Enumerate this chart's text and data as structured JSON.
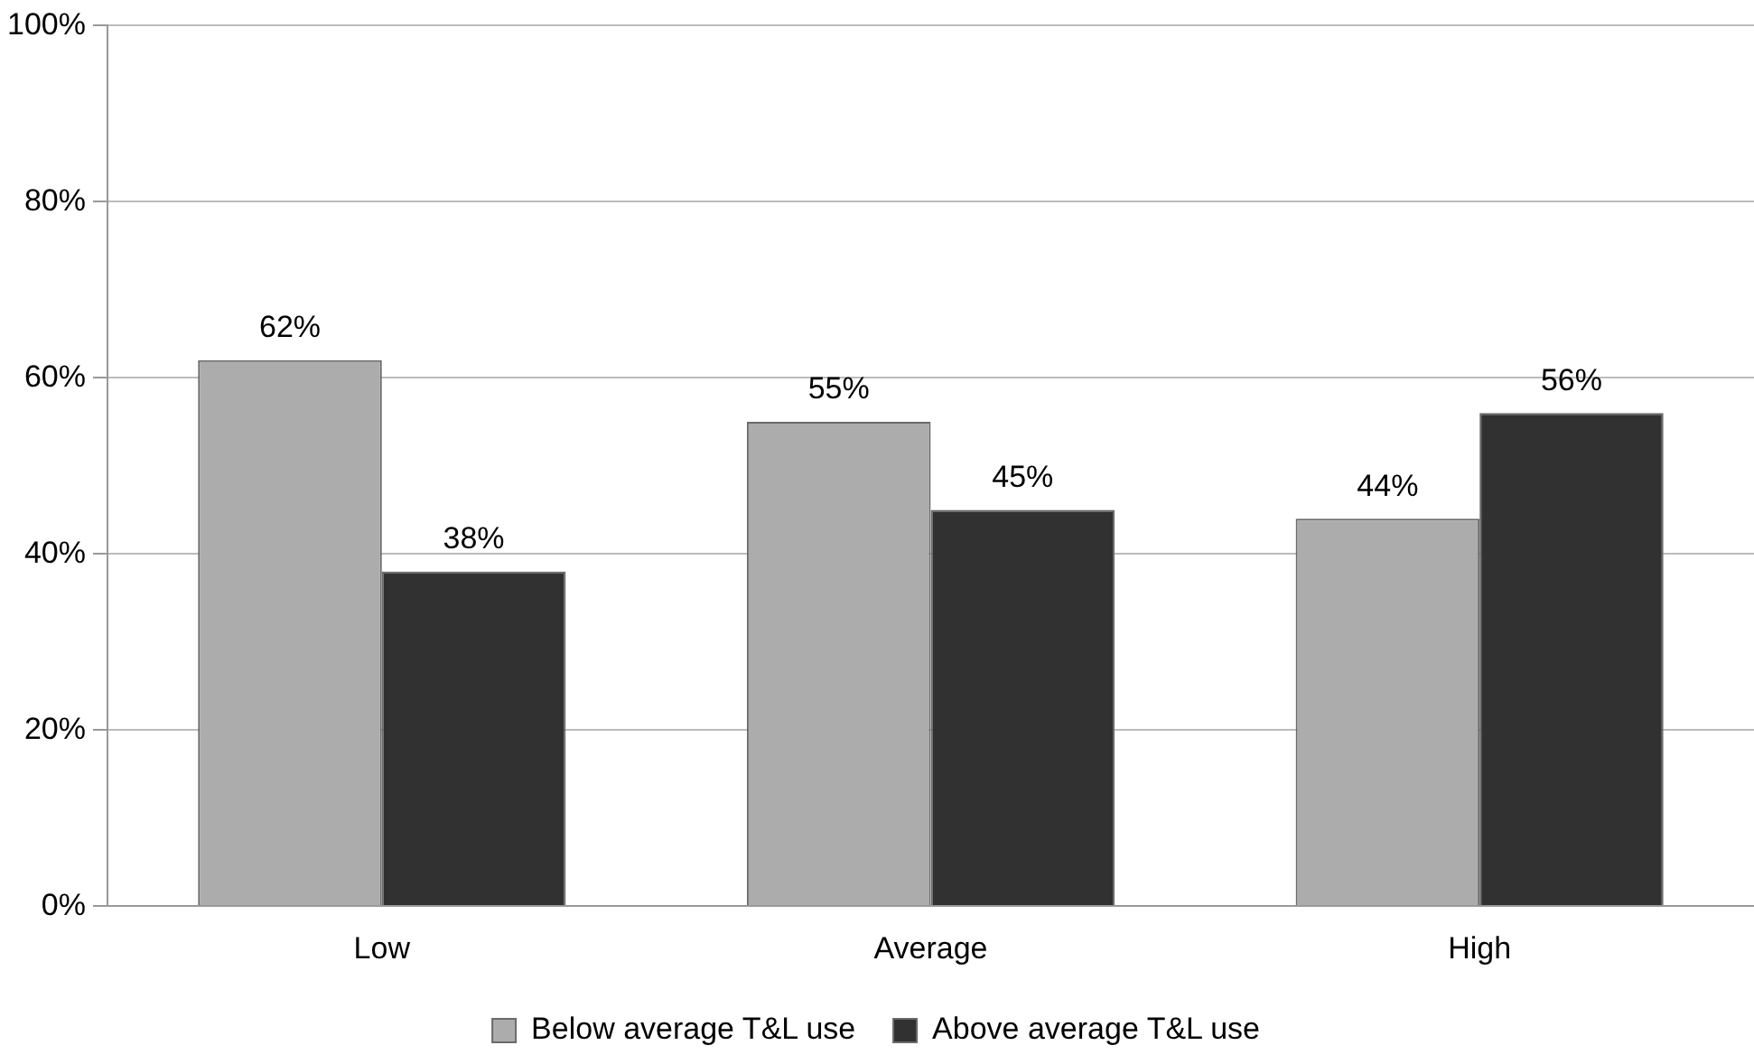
{
  "chart_data": {
    "type": "bar",
    "categories": [
      "Low",
      "Average",
      "High"
    ],
    "series": [
      {
        "name": "Below average T&L use",
        "color": "#acacac",
        "values": [
          62,
          55,
          44
        ],
        "value_labels": [
          "62%",
          "55%",
          "44%"
        ]
      },
      {
        "name": "Above average T&L use",
        "color": "#313131",
        "values": [
          38,
          45,
          56
        ],
        "value_labels": [
          "38%",
          "45%",
          "56%"
        ]
      }
    ],
    "ylim": [
      0,
      100
    ],
    "yticks": [
      {
        "value": 0,
        "label": "0%"
      },
      {
        "value": 20,
        "label": "20%"
      },
      {
        "value": 40,
        "label": "40%"
      },
      {
        "value": 60,
        "label": "60%"
      },
      {
        "value": 80,
        "label": "80%"
      },
      {
        "value": 100,
        "label": "100%"
      }
    ],
    "grid": "y",
    "legend": "bottom"
  }
}
